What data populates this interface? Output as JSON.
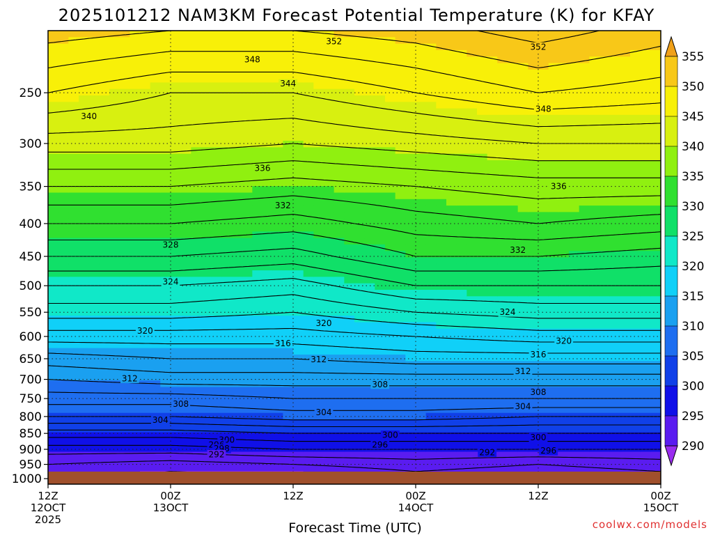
{
  "chart_data": {
    "type": "heatmap",
    "title": "2025101212 NAM3KM Forecast Potential Temperature (K) for KFAY",
    "xlabel": "Forecast Time (UTC)",
    "credit": "coolwx.com/models",
    "x_ticks": [
      {
        "hours": 0,
        "line1": "12Z",
        "line2": "12OCT",
        "line3": "2025"
      },
      {
        "hours": 12,
        "line1": "00Z",
        "line2": "13OCT",
        "line3": ""
      },
      {
        "hours": 24,
        "line1": "12Z",
        "line2": "",
        "line3": ""
      },
      {
        "hours": 36,
        "line1": "00Z",
        "line2": "14OCT",
        "line3": ""
      },
      {
        "hours": 48,
        "line1": "12Z",
        "line2": "",
        "line3": ""
      },
      {
        "hours": 60,
        "line1": "00Z",
        "line2": "15OCT",
        "line3": ""
      }
    ],
    "xlim": [
      0,
      60
    ],
    "y_ticks": [
      250,
      300,
      350,
      400,
      450,
      500,
      550,
      600,
      650,
      700,
      750,
      800,
      850,
      900,
      950,
      1000
    ],
    "ylim": [
      200,
      1020
    ],
    "y_scale": "log-pressure",
    "colorbar": {
      "levels": [
        290,
        295,
        300,
        305,
        310,
        315,
        320,
        325,
        330,
        335,
        340,
        345,
        350,
        355
      ],
      "colors": [
        "#9a2cf0",
        "#5a1cf0",
        "#1010e8",
        "#1040e8",
        "#1e6ef0",
        "#1aa0f0",
        "#10d0f8",
        "#10e8c8",
        "#10e068",
        "#30e030",
        "#90f010",
        "#d8f010",
        "#f8f008",
        "#f8c818",
        "#f0a018"
      ]
    },
    "theta_profiles": [
      {
        "hours": 0,
        "levels": [
          {
            "p": 1000,
            "theta": 291
          },
          {
            "p": 950,
            "theta": 292
          },
          {
            "p": 900,
            "theta": 295
          },
          {
            "p": 850,
            "theta": 299
          },
          {
            "p": 800,
            "theta": 304
          },
          {
            "p": 750,
            "theta": 307
          },
          {
            "p": 700,
            "theta": 310
          },
          {
            "p": 650,
            "theta": 313
          },
          {
            "p": 600,
            "theta": 317
          },
          {
            "p": 550,
            "theta": 321
          },
          {
            "p": 500,
            "theta": 324
          },
          {
            "p": 450,
            "theta": 328
          },
          {
            "p": 400,
            "theta": 332
          },
          {
            "p": 350,
            "theta": 336
          },
          {
            "p": 300,
            "theta": 341
          },
          {
            "p": 250,
            "theta": 346
          },
          {
            "p": 200,
            "theta": 351
          }
        ]
      },
      {
        "hours": 12,
        "levels": [
          {
            "p": 1000,
            "theta": 289
          },
          {
            "p": 950,
            "theta": 291
          },
          {
            "p": 900,
            "theta": 295
          },
          {
            "p": 850,
            "theta": 299
          },
          {
            "p": 800,
            "theta": 304
          },
          {
            "p": 750,
            "theta": 307
          },
          {
            "p": 700,
            "theta": 311
          },
          {
            "p": 650,
            "theta": 314
          },
          {
            "p": 600,
            "theta": 317
          },
          {
            "p": 550,
            "theta": 321
          },
          {
            "p": 500,
            "theta": 324
          },
          {
            "p": 450,
            "theta": 328
          },
          {
            "p": 400,
            "theta": 332
          },
          {
            "p": 350,
            "theta": 336
          },
          {
            "p": 300,
            "theta": 341
          },
          {
            "p": 250,
            "theta": 344
          },
          {
            "p": 200,
            "theta": 350
          }
        ]
      },
      {
        "hours": 24,
        "levels": [
          {
            "p": 1000,
            "theta": 289
          },
          {
            "p": 950,
            "theta": 292
          },
          {
            "p": 900,
            "theta": 296
          },
          {
            "p": 850,
            "theta": 300
          },
          {
            "p": 800,
            "theta": 305
          },
          {
            "p": 750,
            "theta": 308
          },
          {
            "p": 700,
            "theta": 311
          },
          {
            "p": 650,
            "theta": 314
          },
          {
            "p": 600,
            "theta": 317
          },
          {
            "p": 550,
            "theta": 320
          },
          {
            "p": 500,
            "theta": 323
          },
          {
            "p": 450,
            "theta": 327
          },
          {
            "p": 400,
            "theta": 331
          },
          {
            "p": 350,
            "theta": 335
          },
          {
            "p": 300,
            "theta": 340
          },
          {
            "p": 250,
            "theta": 344
          },
          {
            "p": 200,
            "theta": 350
          }
        ]
      },
      {
        "hours": 36,
        "levels": [
          {
            "p": 1000,
            "theta": 291
          },
          {
            "p": 950,
            "theta": 293
          },
          {
            "p": 900,
            "theta": 296
          },
          {
            "p": 850,
            "theta": 300
          },
          {
            "p": 800,
            "theta": 305
          },
          {
            "p": 750,
            "theta": 308
          },
          {
            "p": 700,
            "theta": 311
          },
          {
            "p": 650,
            "theta": 315
          },
          {
            "p": 600,
            "theta": 318
          },
          {
            "p": 550,
            "theta": 322
          },
          {
            "p": 500,
            "theta": 326
          },
          {
            "p": 450,
            "theta": 330
          },
          {
            "p": 400,
            "theta": 333
          },
          {
            "p": 350,
            "theta": 336
          },
          {
            "p": 300,
            "theta": 341
          },
          {
            "p": 250,
            "theta": 346
          },
          {
            "p": 200,
            "theta": 351
          }
        ]
      },
      {
        "hours": 48,
        "levels": [
          {
            "p": 1000,
            "theta": 290
          },
          {
            "p": 950,
            "theta": 292
          },
          {
            "p": 900,
            "theta": 296
          },
          {
            "p": 850,
            "theta": 300
          },
          {
            "p": 800,
            "theta": 304
          },
          {
            "p": 750,
            "theta": 308
          },
          {
            "p": 700,
            "theta": 311
          },
          {
            "p": 650,
            "theta": 315
          },
          {
            "p": 600,
            "theta": 319
          },
          {
            "p": 550,
            "theta": 323
          },
          {
            "p": 500,
            "theta": 326
          },
          {
            "p": 450,
            "theta": 330
          },
          {
            "p": 400,
            "theta": 334
          },
          {
            "p": 350,
            "theta": 337
          },
          {
            "p": 300,
            "theta": 342
          },
          {
            "p": 250,
            "theta": 348
          },
          {
            "p": 200,
            "theta": 353
          }
        ]
      },
      {
        "hours": 60,
        "levels": [
          {
            "p": 1000,
            "theta": 291
          },
          {
            "p": 950,
            "theta": 293
          },
          {
            "p": 900,
            "theta": 296
          },
          {
            "p": 850,
            "theta": 300
          },
          {
            "p": 800,
            "theta": 304
          },
          {
            "p": 750,
            "theta": 308
          },
          {
            "p": 700,
            "theta": 311
          },
          {
            "p": 650,
            "theta": 315
          },
          {
            "p": 600,
            "theta": 319
          },
          {
            "p": 550,
            "theta": 323
          },
          {
            "p": 500,
            "theta": 326
          },
          {
            "p": 450,
            "theta": 329
          },
          {
            "p": 400,
            "theta": 333
          },
          {
            "p": 350,
            "theta": 337
          },
          {
            "p": 300,
            "theta": 342
          },
          {
            "p": 250,
            "theta": 347
          },
          {
            "p": 200,
            "theta": 351
          }
        ]
      }
    ],
    "contour_interval": 2,
    "contour_labels": [
      {
        "hours": 28,
        "p": 208,
        "value": "352"
      },
      {
        "hours": 48,
        "p": 212,
        "value": "352"
      },
      {
        "hours": 20,
        "p": 222,
        "value": "348"
      },
      {
        "hours": 48.5,
        "p": 265,
        "value": "348"
      },
      {
        "hours": 23.5,
        "p": 242,
        "value": "344"
      },
      {
        "hours": 4,
        "p": 272,
        "value": "340"
      },
      {
        "hours": 21,
        "p": 328,
        "value": "336"
      },
      {
        "hours": 50,
        "p": 350,
        "value": "336"
      },
      {
        "hours": 23,
        "p": 375,
        "value": "332"
      },
      {
        "hours": 46,
        "p": 440,
        "value": "332"
      },
      {
        "hours": 12,
        "p": 432,
        "value": "328"
      },
      {
        "hours": 12,
        "p": 493,
        "value": "324"
      },
      {
        "hours": 45,
        "p": 550,
        "value": "324"
      },
      {
        "hours": 9.5,
        "p": 588,
        "value": "320"
      },
      {
        "hours": 27,
        "p": 572,
        "value": "320"
      },
      {
        "hours": 50.5,
        "p": 610,
        "value": "320"
      },
      {
        "hours": 23,
        "p": 615,
        "value": "316"
      },
      {
        "hours": 48,
        "p": 640,
        "value": "316"
      },
      {
        "hours": 26.5,
        "p": 652,
        "value": "312"
      },
      {
        "hours": 8,
        "p": 698,
        "value": "312"
      },
      {
        "hours": 46.5,
        "p": 680,
        "value": "312"
      },
      {
        "hours": 32.5,
        "p": 713,
        "value": "308"
      },
      {
        "hours": 13,
        "p": 765,
        "value": "308"
      },
      {
        "hours": 48,
        "p": 733,
        "value": "308"
      },
      {
        "hours": 27,
        "p": 788,
        "value": "304"
      },
      {
        "hours": 11,
        "p": 810,
        "value": "304"
      },
      {
        "hours": 46.5,
        "p": 772,
        "value": "304"
      },
      {
        "hours": 33.5,
        "p": 855,
        "value": "300"
      },
      {
        "hours": 17.5,
        "p": 870,
        "value": "300"
      },
      {
        "hours": 48,
        "p": 863,
        "value": "300"
      },
      {
        "hours": 32.5,
        "p": 885,
        "value": "296"
      },
      {
        "hours": 16.5,
        "p": 885,
        "value": "296"
      },
      {
        "hours": 49,
        "p": 905,
        "value": "296"
      },
      {
        "hours": 17,
        "p": 898,
        "value": "298"
      },
      {
        "hours": 16.5,
        "p": 917,
        "value": "292"
      },
      {
        "hours": 43,
        "p": 910,
        "value": "292"
      }
    ],
    "colors": {
      "ground": "#a0502c",
      "grid": "#202020",
      "credit": "#e03030"
    }
  }
}
